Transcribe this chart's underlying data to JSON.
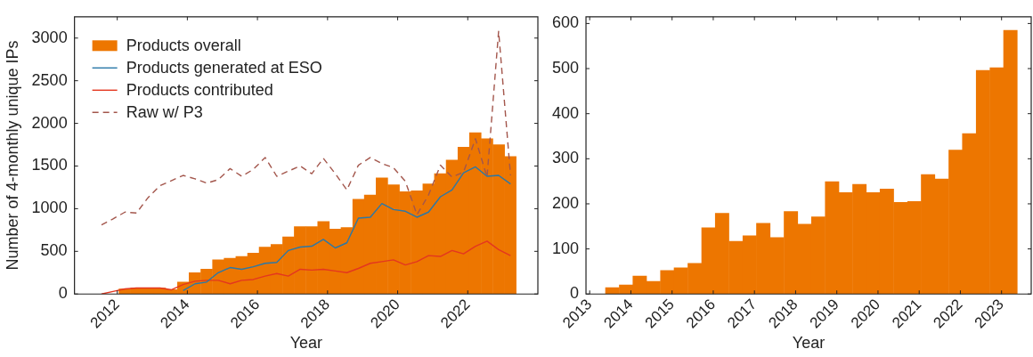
{
  "chart_data": [
    {
      "type": "histogram",
      "xlabel": "Year",
      "ylabel": "Number of 4-monthly unique IPs",
      "legend": "top left",
      "grid": false,
      "bins": [
        2012.05,
        2012.38,
        2012.72,
        2013.05,
        2013.38,
        2013.72,
        2014.05,
        2014.38,
        2014.72,
        2015.05,
        2015.38,
        2015.72,
        2016.05,
        2016.38,
        2016.72,
        2017.05,
        2017.38,
        2017.72,
        2018.05,
        2018.38,
        2018.72,
        2019.05,
        2019.38,
        2019.72,
        2020.05,
        2020.38,
        2020.72,
        2021.05,
        2021.38,
        2021.72,
        2022.05,
        2022.38,
        2022.72,
        2023.05,
        2023.38
      ],
      "series": [
        {
          "name": "Products overall",
          "color": "#ed7600",
          "values": [
            60,
            70,
            70,
            70,
            50,
            140,
            250,
            290,
            400,
            420,
            440,
            480,
            550,
            580,
            670,
            790,
            790,
            850,
            760,
            780,
            1110,
            1160,
            1360,
            1280,
            1200,
            1210,
            1290,
            1410,
            1570,
            1720,
            1890,
            1820,
            1750,
            1610
          ]
        },
        {
          "name": "Products generated at ESO",
          "type": "line",
          "color": "#2a78a8",
          "x": [
            2013.88,
            2014.22,
            2014.55,
            2014.88,
            2015.22,
            2015.55,
            2015.88,
            2016.22,
            2016.55,
            2016.88,
            2017.22,
            2017.55,
            2017.88,
            2018.22,
            2018.55,
            2018.88,
            2019.22,
            2019.55,
            2019.88,
            2020.22,
            2020.55,
            2020.88,
            2021.22,
            2021.55,
            2021.88,
            2022.22,
            2022.55,
            2022.88,
            2023.22
          ],
          "values": [
            40,
            120,
            140,
            250,
            310,
            290,
            320,
            360,
            370,
            510,
            550,
            560,
            640,
            540,
            600,
            890,
            900,
            1060,
            990,
            970,
            900,
            960,
            1140,
            1220,
            1420,
            1490,
            1380,
            1390,
            1290
          ]
        },
        {
          "name": "Products contributed",
          "type": "line",
          "color": "#e4361f",
          "x": [
            2011.55,
            2011.88,
            2012.22,
            2012.55,
            2012.88,
            2013.22,
            2013.55,
            2013.88,
            2014.22,
            2014.55,
            2014.88,
            2015.22,
            2015.55,
            2015.88,
            2016.22,
            2016.55,
            2016.88,
            2017.22,
            2017.55,
            2017.88,
            2018.22,
            2018.55,
            2018.88,
            2019.22,
            2019.55,
            2019.88,
            2020.22,
            2020.55,
            2020.88,
            2021.22,
            2021.55,
            2021.88,
            2022.22,
            2022.55,
            2022.88,
            2023.22
          ],
          "values": [
            0,
            30,
            60,
            70,
            70,
            70,
            50,
            110,
            150,
            160,
            160,
            120,
            160,
            170,
            210,
            240,
            210,
            290,
            280,
            290,
            270,
            250,
            300,
            360,
            380,
            400,
            340,
            380,
            450,
            440,
            510,
            470,
            560,
            620,
            520,
            450
          ]
        },
        {
          "name": "Raw w/ P3",
          "type": "line",
          "line_style": "dashed",
          "color": "#a3564c",
          "x": [
            2011.55,
            2011.88,
            2012.22,
            2012.55,
            2012.88,
            2013.22,
            2013.55,
            2013.88,
            2014.22,
            2014.55,
            2014.88,
            2015.22,
            2015.55,
            2015.88,
            2016.22,
            2016.55,
            2016.88,
            2017.22,
            2017.55,
            2017.88,
            2018.22,
            2018.55,
            2018.88,
            2019.22,
            2019.55,
            2019.88,
            2020.22,
            2020.55,
            2020.88,
            2021.22,
            2021.55,
            2021.88,
            2022.22,
            2022.55,
            2022.88,
            2023.22
          ],
          "values": [
            810,
            880,
            960,
            950,
            1130,
            1270,
            1330,
            1390,
            1350,
            1300,
            1340,
            1470,
            1380,
            1460,
            1600,
            1380,
            1440,
            1500,
            1410,
            1590,
            1410,
            1220,
            1510,
            1600,
            1530,
            1480,
            1320,
            930,
            1160,
            1510,
            1370,
            1430,
            1820,
            1370,
            3080,
            1390
          ]
        }
      ],
      "xlim": [
        2010.78,
        2024.0
      ],
      "xticks": [
        2012,
        2014,
        2016,
        2018,
        2020,
        2022
      ],
      "ylim": [
        0,
        3250
      ],
      "yticks": [
        0,
        500,
        1000,
        1500,
        2000,
        2500,
        3000
      ]
    },
    {
      "type": "histogram",
      "xlabel": "Year",
      "grid": false,
      "color": "#ed7600",
      "bins": [
        2013.38,
        2013.72,
        2014.05,
        2014.38,
        2014.72,
        2015.05,
        2015.38,
        2015.72,
        2016.05,
        2016.38,
        2016.72,
        2017.05,
        2017.38,
        2017.72,
        2018.05,
        2018.38,
        2018.72,
        2019.05,
        2019.38,
        2019.72,
        2020.05,
        2020.38,
        2020.72,
        2021.05,
        2021.38,
        2021.72,
        2022.05,
        2022.38,
        2022.72,
        2023.05,
        2023.38
      ],
      "values": [
        14,
        20,
        40,
        28,
        52,
        58,
        68,
        147,
        179,
        117,
        129,
        157,
        125,
        183,
        155,
        171,
        249,
        225,
        243,
        225,
        233,
        203,
        205,
        265,
        255,
        319,
        356,
        496,
        502,
        585
      ],
      "xlim": [
        2012.91,
        2023.72
      ],
      "xticks": [
        2013,
        2014,
        2015,
        2016,
        2017,
        2018,
        2019,
        2020,
        2021,
        2022,
        2023
      ],
      "ylim": [
        0,
        615
      ],
      "yticks": [
        0,
        100,
        200,
        300,
        400,
        500,
        600
      ]
    }
  ]
}
